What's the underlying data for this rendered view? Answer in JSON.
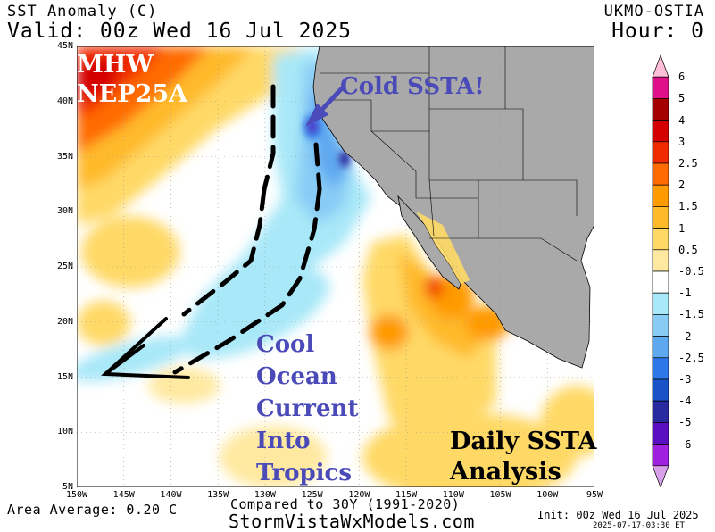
{
  "header": {
    "variable": "SST Anomaly (C)",
    "valid_line": "Valid: 00z Wed 16 Jul 2025",
    "model": "UKMO-OSTIA",
    "hour": "Hour: 0"
  },
  "map": {
    "region": "Eastern North Pacific, US West Coast, Mexico",
    "lat_labels": [
      "45N",
      "40N",
      "35N",
      "30N",
      "25N",
      "20N",
      "15N",
      "10N",
      "5N"
    ],
    "lon_labels": [
      "150W",
      "145W",
      "140W",
      "135W",
      "130W",
      "125W",
      "120W",
      "115W",
      "110W",
      "105W",
      "100W",
      "95W"
    ],
    "colors": {
      "land": "#a9a9a9",
      "border": "#000000",
      "cold_arrow": "#4a4ab8",
      "current_arrow": "#000000"
    }
  },
  "annotations": {
    "mhw": [
      "MHW",
      "NEP25A"
    ],
    "cold_ssta": "Cold SSTA!",
    "current": [
      "Cool",
      "Ocean",
      "Current",
      "Into",
      "Tropics"
    ],
    "analysis": [
      "Daily SSTA",
      "Analysis"
    ]
  },
  "colorbar": {
    "labels": [
      "6",
      "5",
      "4",
      "3",
      "2.5",
      "2",
      "1.5",
      "1",
      "0.5",
      "-0.5",
      "-1",
      "-1.5",
      "-2",
      "-2.5",
      "-3",
      "-4",
      "-5",
      "-6"
    ],
    "colors": [
      "#ffbfd9",
      "#e0108a",
      "#a50000",
      "#d40000",
      "#f02a00",
      "#ff6a00",
      "#ff9a00",
      "#ffba2a",
      "#ffd966",
      "#ffe9a0",
      "#ffffff",
      "#a8e8f8",
      "#88ccf6",
      "#5ea8f0",
      "#2d78e8",
      "#1a52c8",
      "#2a2aa0",
      "#5a10c0",
      "#a020e0",
      "#d8a0e8"
    ]
  },
  "footer": {
    "area_average": "Area Average: 0.20 C",
    "compared": "Compared to 30Y (1991-2020)",
    "website": "StormVistaWxModels.com",
    "init": "Init: 00z Wed 16 Jul 2025",
    "timestamp": "2025-07-17-03:30 ET"
  }
}
